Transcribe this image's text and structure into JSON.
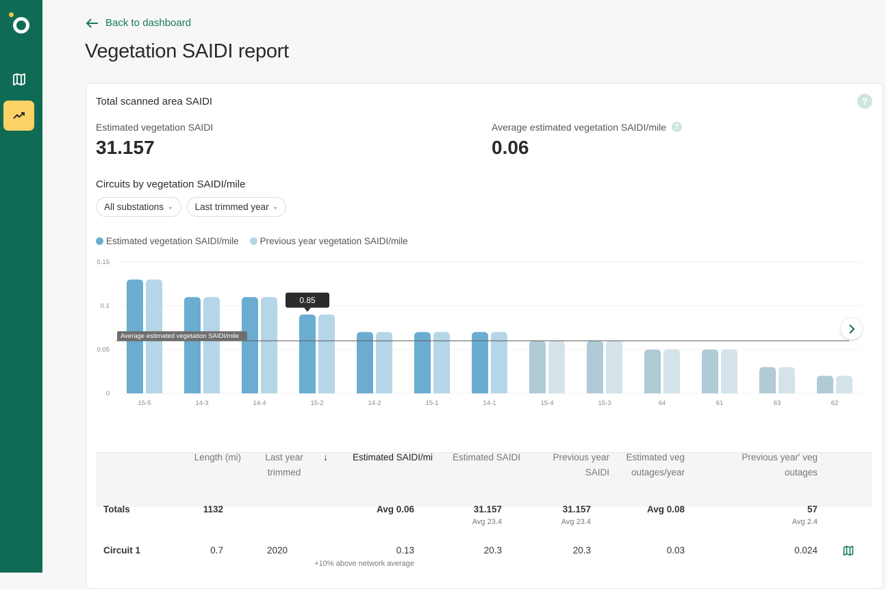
{
  "nav": {
    "items": [
      {
        "icon": "map-icon"
      },
      {
        "icon": "trending-up-icon",
        "active": true
      }
    ]
  },
  "header": {
    "back_label": "Back to dashboard",
    "title": "Vegetation SAIDI report"
  },
  "card": {
    "title": "Total scanned area SAIDI",
    "metric1": {
      "label": "Estimated vegetation SAIDI",
      "value": "31.157"
    },
    "metric2": {
      "label": "Average estimated vegetation SAIDI/mile",
      "value": "0.06"
    },
    "section_title": "Circuits by vegetation SAIDI/mile",
    "filters": [
      {
        "label": "All substations"
      },
      {
        "label": "Last trimmed year"
      }
    ]
  },
  "colors": {
    "accent": "#106b55",
    "highlight": "#fcd166",
    "current": "#6aadd0",
    "previous": "#b4d6e8",
    "current_faded": "#b0cad6",
    "previous_faded": "#d4e3ea"
  },
  "chart_data": {
    "type": "bar",
    "categories": [
      "15-5",
      "14-3",
      "14-4",
      "15-2",
      "14-2",
      "15-1",
      "14-1",
      "15-4",
      "15-3",
      "64",
      "61",
      "63",
      "62"
    ],
    "series": [
      {
        "name": "Estimated vegetation SAIDI/mile",
        "values": [
          0.13,
          0.11,
          0.11,
          0.09,
          0.07,
          0.07,
          0.07,
          0.06,
          0.06,
          0.05,
          0.05,
          0.03,
          0.02
        ]
      },
      {
        "name": "Previous year vegetation SAIDI/mile",
        "values": [
          0.13,
          0.11,
          0.11,
          0.09,
          0.07,
          0.07,
          0.07,
          0.06,
          0.06,
          0.05,
          0.05,
          0.03,
          0.02
        ]
      }
    ],
    "ylim": [
      0,
      0.15
    ],
    "yticks": [
      "0",
      "0.05",
      "0.1",
      "0.15"
    ],
    "grid": true,
    "legend": "top-left",
    "reference_line": {
      "label": "Average estimated vegetation SAIDI/mile",
      "value": 0.06
    },
    "tooltip": {
      "category": "15-2",
      "text": "0.85"
    }
  },
  "table": {
    "headers": [
      "Length (mi)",
      "Last year trimmed",
      "Estimated SAIDI/mi",
      "Estimated SAIDI",
      "Previous year SAIDI",
      "Estimated veg outages/year",
      "Previous year' veg outages"
    ],
    "sort_icon": "arrow-down-icon",
    "totals": {
      "label": "Totals",
      "length": "1132",
      "est_saidi_mi": "Avg 0.06",
      "est_saidi": "31.157",
      "est_saidi_sub": "Avg 23.4",
      "prev_saidi": "31.157",
      "prev_saidi_sub": "Avg 23.4",
      "est_outages": "Avg 0.08",
      "prev_outages": "57",
      "prev_outages_sub": "Avg 2.4"
    },
    "rows": [
      {
        "name": "Circuit 1",
        "length": "0.7",
        "last_trimmed": "2020",
        "est_saidi_mi": "0.13",
        "est_saidi_mi_note": "+10% above network average",
        "est_saidi": "20.3",
        "prev_saidi": "20.3",
        "est_outages": "0.03",
        "prev_outages": "0.024"
      }
    ]
  }
}
